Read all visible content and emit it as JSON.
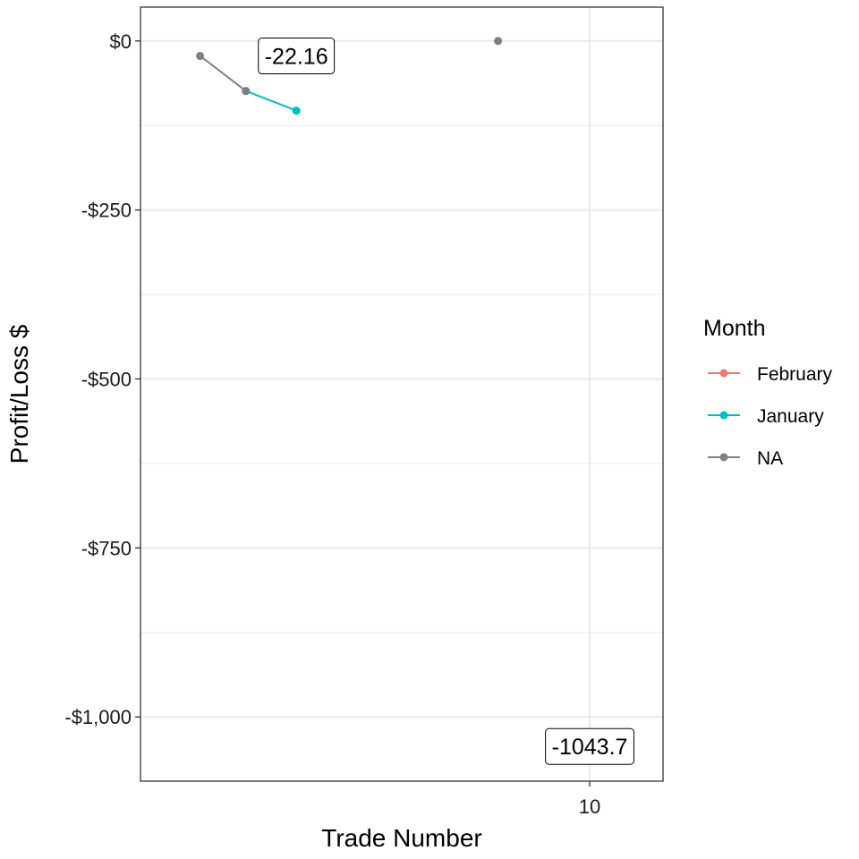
{
  "chart_data": {
    "type": "line",
    "title": "",
    "xlabel": "Trade Number",
    "ylabel": "Profit/Loss $",
    "xlim": [
      5.1,
      10.8
    ],
    "ylim": [
      -1095,
      50
    ],
    "x_ticks": [
      {
        "value": 10,
        "label": "10"
      }
    ],
    "y_ticks": [
      {
        "value": 0,
        "label": "$0"
      },
      {
        "value": -250,
        "label": "-$250"
      },
      {
        "value": -500,
        "label": "-$500"
      },
      {
        "value": -750,
        "label": "-$750"
      },
      {
        "value": -1000,
        "label": "-$1,000"
      }
    ],
    "y_minor_grid": [
      -125,
      -375,
      -625,
      -875
    ],
    "grid": true,
    "legend": {
      "title": "Month",
      "position": "right",
      "entries": [
        {
          "label": "February",
          "color": "#F8766D"
        },
        {
          "label": "January",
          "color": "#00BFC4"
        },
        {
          "label": "NA",
          "color": "#7F7F7F"
        }
      ]
    },
    "series": [
      {
        "name": "January",
        "color": "#00BFC4",
        "points": [
          [
            6.25,
            -74
          ],
          [
            6.8,
            -103
          ]
        ]
      },
      {
        "name": "NA",
        "color": "#7F7F7F",
        "points": [
          [
            5.75,
            -22.16
          ],
          [
            6.25,
            -74
          ]
        ]
      },
      {
        "name": "NA",
        "color": "#7F7F7F",
        "points": [
          [
            9.0,
            0
          ]
        ]
      }
    ],
    "annotations": [
      {
        "text": "-22.16",
        "x": 6.8,
        "y": -22.16
      },
      {
        "text": "-1043.7",
        "x": 10.0,
        "y": -1043.7
      }
    ]
  }
}
